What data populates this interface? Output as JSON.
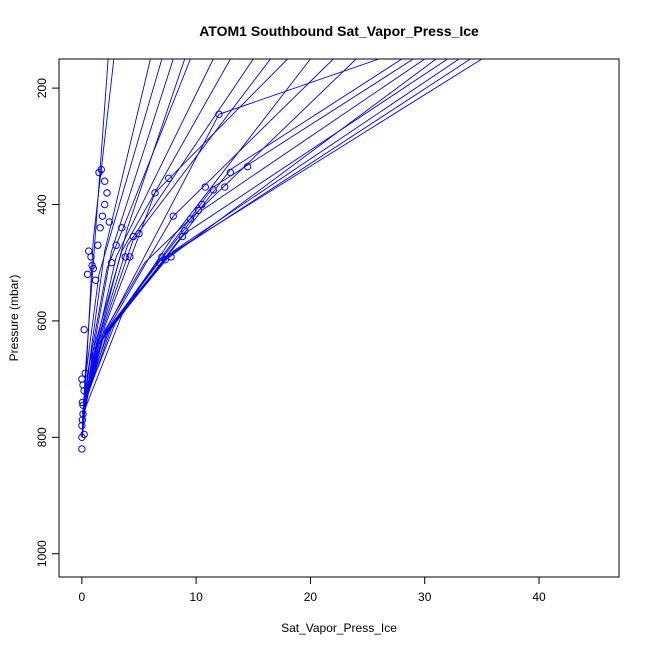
{
  "chart_data": {
    "type": "scatter",
    "title": "ATOM1 Southbound Sat_Vapor_Press_Ice",
    "xlabel": "Sat_Vapor_Press_Ice",
    "ylabel": "Pressure (mbar)",
    "xlim": [
      -2,
      47
    ],
    "ylim": [
      1040,
      150
    ],
    "y_reversed": true,
    "x_ticks": [
      0,
      10,
      20,
      30,
      40
    ],
    "y_ticks": [
      200,
      400,
      600,
      800,
      1000
    ],
    "grid": false,
    "legend": "none",
    "color": "#0000ff",
    "series": [
      {
        "x": [
          0.05,
          0.3,
          1.5,
          7.0
        ],
        "y": [
          790,
          700,
          520,
          150
        ]
      },
      {
        "x": [
          0.05,
          0.5,
          2.2,
          9.5
        ],
        "y": [
          775,
          690,
          510,
          150
        ]
      },
      {
        "x": [
          0.1,
          0.8,
          3.0,
          11.5
        ],
        "y": [
          770,
          680,
          490,
          150
        ]
      },
      {
        "x": [
          0.05,
          0.6,
          2.0,
          6.0
        ],
        "y": [
          800,
          680,
          480,
          150
        ]
      },
      {
        "x": [
          0.05,
          0.4,
          1.0,
          2.8
        ],
        "y": [
          780,
          680,
          460,
          150
        ]
      },
      {
        "x": [
          0.02,
          0.3,
          1.0,
          2.3
        ],
        "y": [
          795,
          690,
          500,
          150
        ]
      },
      {
        "x": [
          0.05,
          0.7,
          3.5,
          13.0
        ],
        "y": [
          760,
          670,
          480,
          150
        ]
      },
      {
        "x": [
          0.1,
          1.0,
          4.0,
          15.0
        ],
        "y": [
          760,
          660,
          470,
          150
        ]
      },
      {
        "x": [
          0.05,
          1.2,
          4.5,
          16.5
        ],
        "y": [
          765,
          650,
          460,
          150
        ]
      },
      {
        "x": [
          0.1,
          1.8,
          6.5,
          35.0
        ],
        "y": [
          750,
          630,
          500,
          150
        ]
      },
      {
        "x": [
          0.1,
          2.5,
          7.5,
          34.0
        ],
        "y": [
          740,
          610,
          490,
          150
        ]
      },
      {
        "x": [
          0.05,
          2.0,
          7.0,
          31.0
        ],
        "y": [
          760,
          620,
          500,
          150
        ]
      },
      {
        "x": [
          0.1,
          3.0,
          8.0,
          33.0
        ],
        "y": [
          745,
          600,
          480,
          150
        ]
      },
      {
        "x": [
          0.05,
          1.5,
          9.0,
          32.0
        ],
        "y": [
          770,
          640,
          450,
          150
        ]
      },
      {
        "x": [
          0.1,
          2.2,
          10.5,
          30.0
        ],
        "y": [
          755,
          620,
          410,
          150
        ]
      },
      {
        "x": [
          0.05,
          1.0,
          11.5,
          29.0
        ],
        "y": [
          780,
          650,
          370,
          150
        ]
      },
      {
        "x": [
          0.1,
          2.8,
          13.0,
          28.0
        ],
        "y": [
          750,
          600,
          340,
          150
        ]
      },
      {
        "x": [
          0.05,
          1.5,
          8.0,
          22.0
        ],
        "y": [
          770,
          640,
          420,
          150
        ]
      },
      {
        "x": [
          0.1,
          3.5,
          7.8,
          20.0
        ],
        "y": [
          760,
          590,
          460,
          150
        ]
      },
      {
        "x": [
          0.05,
          2.0,
          6.4,
          18.0
        ],
        "y": [
          765,
          610,
          380,
          150
        ]
      },
      {
        "x": [
          0.05,
          1.6,
          4.0,
          9.0
        ],
        "y": [
          775,
          620,
          440,
          150
        ]
      },
      {
        "x": [
          0.1,
          0.9,
          2.6,
          8.0
        ],
        "y": [
          770,
          660,
          480,
          150
        ]
      },
      {
        "x": [
          0.05,
          1.3,
          5.5,
          24.0
        ],
        "y": [
          780,
          640,
          500,
          150
        ]
      },
      {
        "x": [
          0.1,
          2.0,
          12.0,
          26.0
        ],
        "y": [
          755,
          620,
          245,
          150
        ]
      }
    ],
    "points": {
      "x": [
        0.0,
        0.0,
        0.0,
        0.05,
        0.1,
        0.05,
        0.2,
        0.1,
        0.0,
        0.3,
        0.2,
        0.5,
        0.6,
        0.8,
        0.9,
        1.0,
        1.2,
        1.4,
        1.6,
        1.7,
        1.8,
        2.0,
        2.2,
        2.4,
        2.6,
        3.0,
        3.5,
        3.8,
        4.2,
        4.5,
        5.0,
        6.4,
        6.8,
        7.0,
        7.3,
        7.6,
        7.8,
        8.0,
        8.8,
        9.0,
        9.5,
        10.2,
        10.5,
        10.8,
        11.5,
        12.0,
        12.5,
        13.0,
        14.5,
        1.5,
        2.0,
        0.2,
        0.1
      ],
      "y": [
        820,
        800,
        780,
        770,
        760,
        740,
        720,
        710,
        700,
        690,
        615,
        520,
        480,
        490,
        505,
        510,
        530,
        470,
        440,
        340,
        420,
        400,
        380,
        430,
        500,
        470,
        440,
        490,
        490,
        455,
        450,
        380,
        500,
        490,
        495,
        355,
        490,
        420,
        455,
        445,
        425,
        410,
        400,
        370,
        375,
        245,
        370,
        345,
        335,
        345,
        360,
        795,
        745
      ]
    }
  }
}
